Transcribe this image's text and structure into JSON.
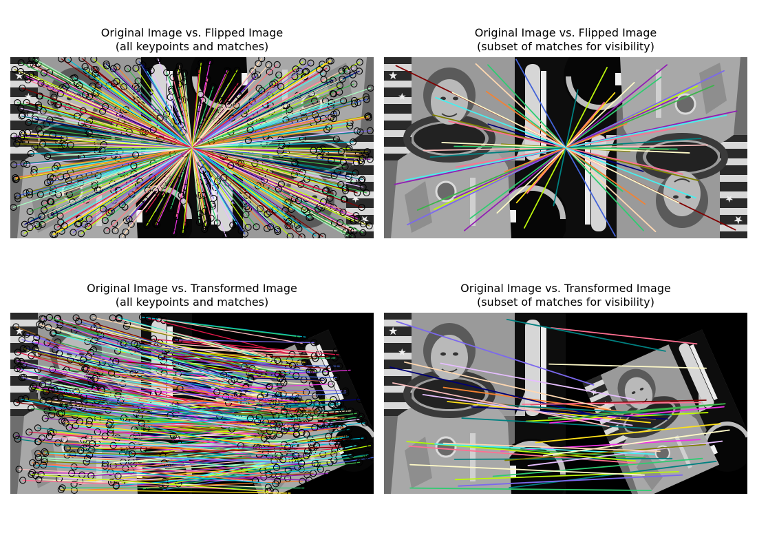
{
  "panels": [
    {
      "id": "flipped-all",
      "title_line1": "Original Image vs. Flipped Image",
      "title_line2": "(all keypoints and matches)",
      "mode": "flip",
      "density": "dense"
    },
    {
      "id": "flipped-subset",
      "title_line1": "Original Image vs. Flipped Image",
      "title_line2": "(subset of matches for visibility)",
      "mode": "flip",
      "density": "sparse"
    },
    {
      "id": "transformed-all",
      "title_line1": "Original Image vs. Transformed Image",
      "title_line2": "(all keypoints and matches)",
      "mode": "transform",
      "density": "dense"
    },
    {
      "id": "transformed-subset",
      "title_line1": "Original Image vs. Transformed Image",
      "title_line2": "(subset of matches for visibility)",
      "mode": "transform",
      "density": "sparse"
    }
  ],
  "match_colors": [
    "#e6194b",
    "#3cb44b",
    "#ffe119",
    "#4363d8",
    "#f58231",
    "#911eb4",
    "#46f0f0",
    "#f032e6",
    "#bcf60c",
    "#fabebe",
    "#008080",
    "#e6beff",
    "#9a6324",
    "#fffac8",
    "#800000",
    "#aaffc3",
    "#808000",
    "#ffd8b1",
    "#000075",
    "#2ecc71",
    "#00bcd4",
    "#ff6f91",
    "#7b68ee",
    "#c0ff00"
  ]
}
